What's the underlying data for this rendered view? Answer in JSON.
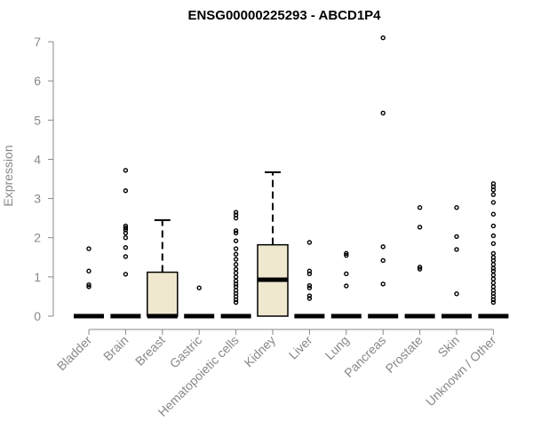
{
  "chart_data": {
    "type": "boxplot",
    "title": "ENSG00000225293 - ABCD1P4",
    "xlabel": "",
    "ylabel": "Expression",
    "ylim": [
      0,
      7
    ],
    "yticks": [
      0,
      1,
      2,
      3,
      4,
      5,
      6,
      7
    ],
    "box_color": "#efe8cf",
    "categories": [
      "Bladder",
      "Brain",
      "Breast",
      "Gastric",
      "Hematopoietic cells",
      "Kidney",
      "Liver",
      "Lung",
      "Pancreas",
      "Prostate",
      "Skin",
      "Unknown / Other"
    ],
    "boxes": [
      {
        "name": "Bladder",
        "q1": 0,
        "median": 0,
        "q3": 0,
        "whisker_low": 0,
        "whisker_high": 0,
        "outliers": [
          0.75,
          0.8,
          1.15,
          1.72
        ]
      },
      {
        "name": "Brain",
        "q1": 0,
        "median": 0,
        "q3": 0,
        "whisker_low": 0,
        "whisker_high": 0,
        "outliers": [
          1.07,
          1.52,
          1.75,
          2.0,
          2.12,
          2.2,
          2.25,
          2.3,
          3.2,
          3.72
        ]
      },
      {
        "name": "Breast",
        "q1": 0,
        "median": 0,
        "q3": 1.12,
        "whisker_low": 0,
        "whisker_high": 2.45,
        "outliers": []
      },
      {
        "name": "Gastric",
        "q1": 0,
        "median": 0,
        "q3": 0,
        "whisker_low": 0,
        "whisker_high": 0,
        "outliers": [
          0.72
        ]
      },
      {
        "name": "Hematopoietic cells",
        "q1": 0,
        "median": 0,
        "q3": 0,
        "whisker_low": 0,
        "whisker_high": 0,
        "outliers": [
          0.35,
          0.42,
          0.5,
          0.58,
          0.66,
          0.75,
          0.82,
          0.9,
          1.0,
          1.1,
          1.2,
          1.32,
          1.45,
          1.58,
          1.72,
          1.92,
          2.12,
          2.18,
          2.5,
          2.58,
          2.65
        ]
      },
      {
        "name": "Kidney",
        "q1": 0,
        "median": 0.93,
        "q3": 1.82,
        "whisker_low": 0,
        "whisker_high": 3.67,
        "outliers": []
      },
      {
        "name": "Liver",
        "q1": 0,
        "median": 0,
        "q3": 0,
        "whisker_low": 0,
        "whisker_high": 0,
        "outliers": [
          0.45,
          0.52,
          0.72,
          0.78,
          1.08,
          1.15,
          1.88
        ]
      },
      {
        "name": "Lung",
        "q1": 0,
        "median": 0,
        "q3": 0,
        "whisker_low": 0,
        "whisker_high": 0,
        "outliers": [
          0.77,
          1.08,
          1.55,
          1.6
        ]
      },
      {
        "name": "Pancreas",
        "q1": 0,
        "median": 0,
        "q3": 0,
        "whisker_low": 0,
        "whisker_high": 0,
        "outliers": [
          0.82,
          1.42,
          1.77,
          5.18,
          7.1
        ]
      },
      {
        "name": "Prostate",
        "q1": 0,
        "median": 0,
        "q3": 0,
        "whisker_low": 0,
        "whisker_high": 0,
        "outliers": [
          1.2,
          1.25,
          2.27,
          2.77
        ]
      },
      {
        "name": "Skin",
        "q1": 0,
        "median": 0,
        "q3": 0,
        "whisker_low": 0,
        "whisker_high": 0,
        "outliers": [
          0.57,
          1.7,
          2.03,
          2.77
        ]
      },
      {
        "name": "Unknown / Other",
        "q1": 0,
        "median": 0,
        "q3": 0,
        "whisker_low": 0,
        "whisker_high": 0,
        "outliers": [
          0.35,
          0.42,
          0.5,
          0.58,
          0.66,
          0.75,
          0.85,
          0.95,
          1.05,
          1.15,
          1.22,
          1.32,
          1.42,
          1.5,
          1.6,
          1.85,
          2.05,
          2.3,
          2.6,
          2.9,
          3.1,
          3.22,
          3.3,
          3.38
        ]
      }
    ]
  }
}
